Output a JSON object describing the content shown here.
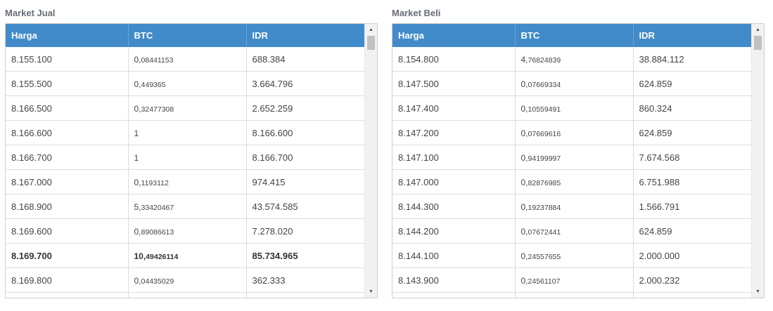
{
  "sell": {
    "title": "Market Jual",
    "columns": [
      "Harga",
      "BTC",
      "IDR"
    ],
    "rows": [
      {
        "price": "8.155.100",
        "btc_int": "0,",
        "btc_dec": "08441153",
        "idr": "688.384"
      },
      {
        "price": "8.155.500",
        "btc_int": "0,",
        "btc_dec": "449365",
        "idr": "3.664.796"
      },
      {
        "price": "8.166.500",
        "btc_int": "0,",
        "btc_dec": "32477308",
        "idr": "2.652.259"
      },
      {
        "price": "8.166.600",
        "btc_int": "1",
        "btc_dec": "",
        "idr": "8.166.600"
      },
      {
        "price": "8.166.700",
        "btc_int": "1",
        "btc_dec": "",
        "idr": "8.166.700"
      },
      {
        "price": "8.167.000",
        "btc_int": "0,",
        "btc_dec": "1193112",
        "idr": "974.415"
      },
      {
        "price": "8.168.900",
        "btc_int": "5,",
        "btc_dec": "33420467",
        "idr": "43.574.585"
      },
      {
        "price": "8.169.600",
        "btc_int": "0,",
        "btc_dec": "89086613",
        "idr": "7.278.020"
      },
      {
        "price": "8.169.700",
        "btc_int": "10,",
        "btc_dec": "49426114",
        "idr": "85.734.965",
        "bold": true
      },
      {
        "price": "8.169.800",
        "btc_int": "0,",
        "btc_dec": "04435029",
        "idr": "362.333"
      },
      {
        "price": "",
        "btc_int": "",
        "btc_dec": "",
        "idr": ""
      }
    ]
  },
  "buy": {
    "title": "Market Beli",
    "columns": [
      "Harga",
      "BTC",
      "IDR"
    ],
    "rows": [
      {
        "price": "8.154.800",
        "btc_int": "4,",
        "btc_dec": "76824839",
        "idr": "38.884.112"
      },
      {
        "price": "8.147.500",
        "btc_int": "0,",
        "btc_dec": "07669334",
        "idr": "624.859"
      },
      {
        "price": "8.147.400",
        "btc_int": "0,",
        "btc_dec": "10559491",
        "idr": "860.324"
      },
      {
        "price": "8.147.200",
        "btc_int": "0,",
        "btc_dec": "07669616",
        "idr": "624.859"
      },
      {
        "price": "8.147.100",
        "btc_int": "0,",
        "btc_dec": "94199997",
        "idr": "7.674.568"
      },
      {
        "price": "8.147.000",
        "btc_int": "0,",
        "btc_dec": "82876985",
        "idr": "6.751.988"
      },
      {
        "price": "8.144.300",
        "btc_int": "0,",
        "btc_dec": "19237884",
        "idr": "1.566.791"
      },
      {
        "price": "8.144.200",
        "btc_int": "0,",
        "btc_dec": "07672441",
        "idr": "624.859"
      },
      {
        "price": "8.144.100",
        "btc_int": "0,",
        "btc_dec": "24557655",
        "idr": "2.000.000"
      },
      {
        "price": "8.143.900",
        "btc_int": "0,",
        "btc_dec": "24561107",
        "idr": "2.000.232"
      },
      {
        "price": "",
        "btc_int": "",
        "btc_dec": "",
        "idr": ""
      }
    ]
  },
  "icons": {
    "scroll_up": "scroll-up-arrow-icon",
    "scroll_down": "scroll-down-arrow-icon"
  },
  "colors": {
    "header_bg": "#428bca",
    "header_text": "#ffffff",
    "title_text": "#666c75"
  }
}
